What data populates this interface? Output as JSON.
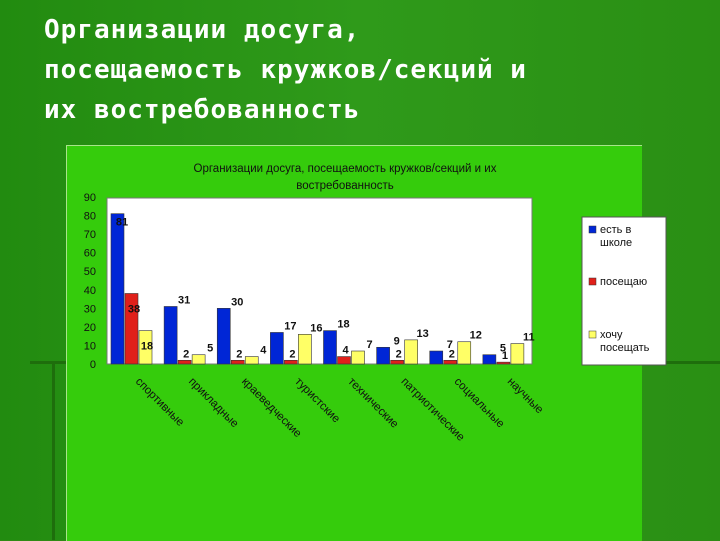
{
  "slide": {
    "title": "Организации досуга,\nпосещаемость кружков/секций и\nих востребованность"
  },
  "chart_data": {
    "type": "bar",
    "title": "Организации досуга, посещаемость кружков/секций и их востребованность",
    "categories": [
      "спортивные",
      "прикладные",
      "краеведческие",
      "туристские",
      "технические",
      "патриотические",
      "социальные",
      "научные"
    ],
    "series": [
      {
        "name": "есть в школе",
        "color": "#0026d6",
        "values": [
          81,
          31,
          30,
          17,
          18,
          9,
          7,
          5
        ]
      },
      {
        "name": "посещаю",
        "color": "#e0201a",
        "values": [
          38,
          2,
          2,
          2,
          4,
          2,
          2,
          1
        ]
      },
      {
        "name": "хочу посещать",
        "color": "#ffff66",
        "values": [
          18,
          5,
          4,
          16,
          7,
          13,
          12,
          11
        ]
      }
    ],
    "ylim": [
      0,
      90
    ],
    "yticks": [
      "0",
      "10",
      "20",
      "30",
      "40",
      "50",
      "60",
      "70",
      "80",
      "90"
    ],
    "grid": false,
    "legend": "right",
    "xlabel": "",
    "ylabel": ""
  }
}
